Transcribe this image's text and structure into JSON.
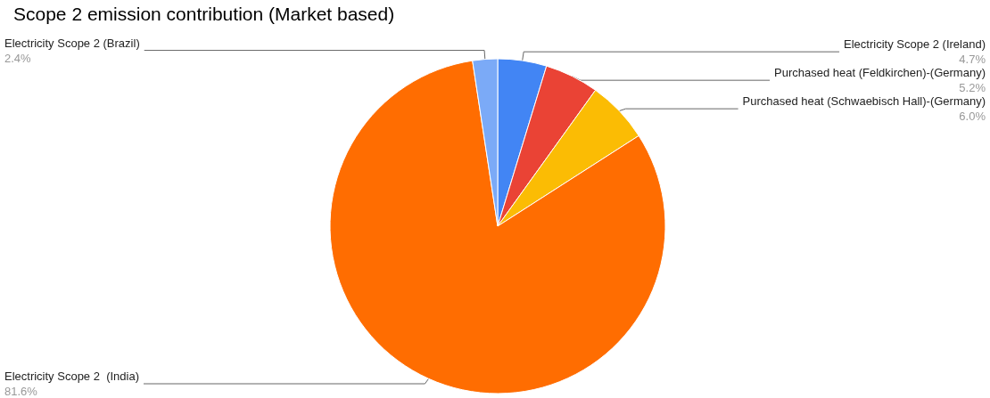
{
  "chart_data": {
    "type": "pie",
    "title": "Scope 2 emission contribution (Market based)",
    "categories": [
      "Electricity Scope 2 (Ireland)",
      "Purchased heat (Feldkirchen)-(Germany)",
      "Purchased heat (Schwaebisch Hall)-(Germany)",
      "Electricity Scope 2  (India)",
      "Electricity Scope 2 (Brazil)"
    ],
    "values": [
      4.7,
      5.2,
      6.0,
      81.6,
      2.4
    ],
    "colors": [
      "#4285f4",
      "#ea4335",
      "#fbbc04",
      "#ff6d01",
      "#7baaf7"
    ],
    "value_labels": [
      "4.7%",
      "5.2%",
      "6.0%",
      "81.6%",
      "2.4%"
    ],
    "legend": false
  }
}
